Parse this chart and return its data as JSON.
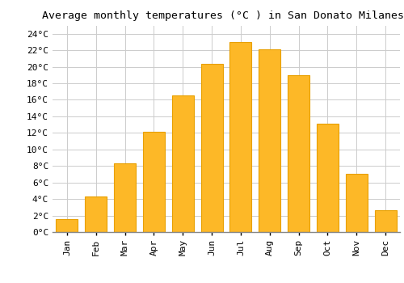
{
  "title": "Average monthly temperatures (°C ) in San Donato Milanese",
  "months": [
    "Jan",
    "Feb",
    "Mar",
    "Apr",
    "May",
    "Jun",
    "Jul",
    "Aug",
    "Sep",
    "Oct",
    "Nov",
    "Dec"
  ],
  "values": [
    1.6,
    4.3,
    8.3,
    12.1,
    16.5,
    20.4,
    23.0,
    22.1,
    19.0,
    13.1,
    7.0,
    2.6
  ],
  "bar_color": "#FDB827",
  "bar_edge_color": "#E8A000",
  "background_color": "#ffffff",
  "grid_color": "#cccccc",
  "ylim": [
    0,
    25
  ],
  "yticks": [
    0,
    2,
    4,
    6,
    8,
    10,
    12,
    14,
    16,
    18,
    20,
    22,
    24
  ],
  "title_fontsize": 9.5,
  "tick_fontsize": 8,
  "title_font": "monospace",
  "tick_font": "monospace",
  "bar_width": 0.75
}
